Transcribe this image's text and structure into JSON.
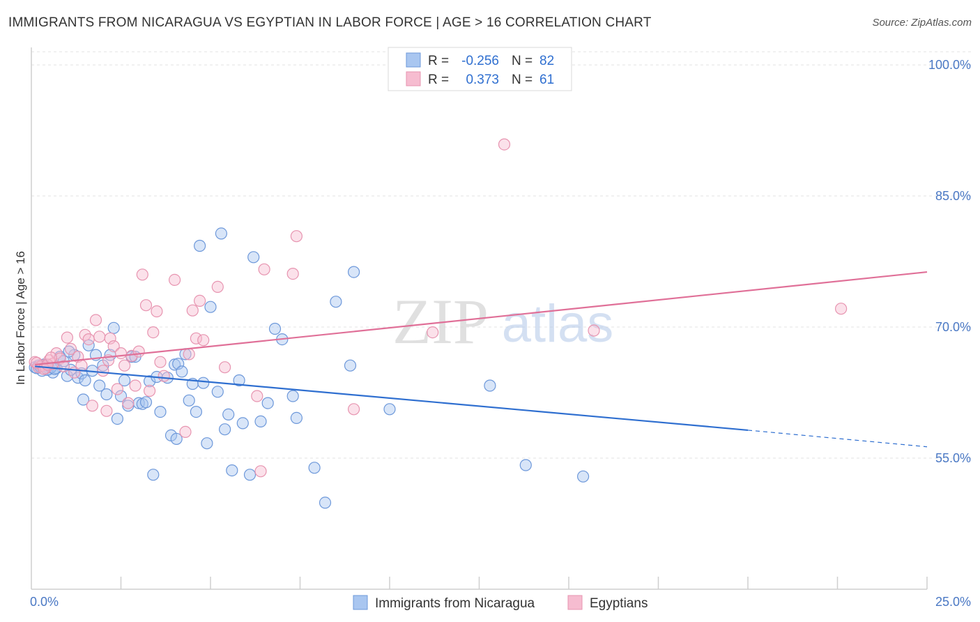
{
  "header": {
    "title": "IMMIGRANTS FROM NICARAGUA VS EGYPTIAN IN LABOR FORCE | AGE > 16 CORRELATION CHART",
    "source": "Source: ZipAtlas.com"
  },
  "watermark": {
    "zip": "ZIP",
    "atlas": "atlas"
  },
  "legend": {
    "rows": [
      {
        "r_label": "R =",
        "r_value": "-0.256",
        "n_label": "N =",
        "n_value": "82",
        "color": "#a9c6f0"
      },
      {
        "r_label": "R =",
        "r_value": "0.373",
        "n_label": "N =",
        "n_value": "61",
        "color": "#f6bcd0"
      }
    ]
  },
  "chart_data": {
    "type": "scatter",
    "title": "IMMIGRANTS FROM NICARAGUA VS EGYPTIAN IN LABOR FORCE | AGE > 16 CORRELATION CHART",
    "xlabel": "",
    "ylabel": "In Labor Force | Age > 16",
    "xlim": [
      0,
      25
    ],
    "ylim": [
      40,
      102
    ],
    "x_tick_labels": [
      "0.0%",
      "25.0%"
    ],
    "y_ticks": [
      55,
      70,
      85,
      100
    ],
    "y_tick_labels": [
      "55.0%",
      "70.0%",
      "85.0%",
      "100.0%"
    ],
    "grid": true,
    "legend_position": "top-center",
    "series": [
      {
        "name": "Immigrants from Nicaragua",
        "color": "#a9c6f0",
        "stroke": "#6d98da",
        "trend": {
          "x0": 0.1,
          "y0": 65.5,
          "x1": 20.0,
          "y1": 58.2,
          "dash_x1": 25.0,
          "dash_y1": 56.3,
          "color": "#2f6fd0"
        },
        "points": [
          [
            0.1,
            65.4
          ],
          [
            0.2,
            65.6
          ],
          [
            0.3,
            65.0
          ],
          [
            0.4,
            65.5
          ],
          [
            0.5,
            65.2
          ],
          [
            0.6,
            64.8
          ],
          [
            0.7,
            65.3
          ],
          [
            0.8,
            66.6
          ],
          [
            0.9,
            66.1
          ],
          [
            1.0,
            64.4
          ],
          [
            1.1,
            65.1
          ],
          [
            1.2,
            66.8
          ],
          [
            1.3,
            64.2
          ],
          [
            1.4,
            64.7
          ],
          [
            1.5,
            63.9
          ],
          [
            1.6,
            67.9
          ],
          [
            1.7,
            65.0
          ],
          [
            1.8,
            66.8
          ],
          [
            1.9,
            63.3
          ],
          [
            2.0,
            65.6
          ],
          [
            2.1,
            62.3
          ],
          [
            2.2,
            66.8
          ],
          [
            2.3,
            69.9
          ],
          [
            2.4,
            59.5
          ],
          [
            2.5,
            62.1
          ],
          [
            2.6,
            63.9
          ],
          [
            2.7,
            61.0
          ],
          [
            2.8,
            66.6
          ],
          [
            2.9,
            66.6
          ],
          [
            3.0,
            61.3
          ],
          [
            3.1,
            61.2
          ],
          [
            3.2,
            61.4
          ],
          [
            3.3,
            63.8
          ],
          [
            3.4,
            53.1
          ],
          [
            3.5,
            64.3
          ],
          [
            3.6,
            60.3
          ],
          [
            3.8,
            64.2
          ],
          [
            3.9,
            57.6
          ],
          [
            4.0,
            65.7
          ],
          [
            4.1,
            65.8
          ],
          [
            4.2,
            64.9
          ],
          [
            4.3,
            66.9
          ],
          [
            4.4,
            61.6
          ],
          [
            4.5,
            63.5
          ],
          [
            4.6,
            60.3
          ],
          [
            4.7,
            79.3
          ],
          [
            4.8,
            63.6
          ],
          [
            4.9,
            56.7
          ],
          [
            5.0,
            72.3
          ],
          [
            5.2,
            62.6
          ],
          [
            5.3,
            80.7
          ],
          [
            5.4,
            58.3
          ],
          [
            5.5,
            60.0
          ],
          [
            5.6,
            53.6
          ],
          [
            5.8,
            63.9
          ],
          [
            5.9,
            59.0
          ],
          [
            6.1,
            53.1
          ],
          [
            6.2,
            78.0
          ],
          [
            6.4,
            59.2
          ],
          [
            6.6,
            61.3
          ],
          [
            6.8,
            69.8
          ],
          [
            7.0,
            68.6
          ],
          [
            7.3,
            62.1
          ],
          [
            7.4,
            59.6
          ],
          [
            7.9,
            53.9
          ],
          [
            8.2,
            49.9
          ],
          [
            8.5,
            72.9
          ],
          [
            8.9,
            65.6
          ],
          [
            9.0,
            76.3
          ],
          [
            10.0,
            60.6
          ],
          [
            12.8,
            63.3
          ],
          [
            13.8,
            54.2
          ],
          [
            15.4,
            52.9
          ],
          [
            0.15,
            65.3
          ],
          [
            0.35,
            65.7
          ],
          [
            0.45,
            65.1
          ],
          [
            0.55,
            65.4
          ],
          [
            0.65,
            65.2
          ],
          [
            1.05,
            67.2
          ],
          [
            4.05,
            57.2
          ],
          [
            1.45,
            61.7
          ],
          [
            0.25,
            65.5
          ]
        ]
      },
      {
        "name": "Egyptians",
        "color": "#f6bcd0",
        "stroke": "#e794b0",
        "trend": {
          "x0": 0.1,
          "y0": 65.7,
          "x1": 25.0,
          "y1": 76.3,
          "color": "#e07098"
        },
        "points": [
          [
            0.1,
            66.0
          ],
          [
            0.2,
            65.4
          ],
          [
            0.3,
            65.6
          ],
          [
            0.4,
            65.3
          ],
          [
            0.5,
            66.2
          ],
          [
            0.6,
            65.8
          ],
          [
            0.7,
            67.0
          ],
          [
            0.8,
            66.4
          ],
          [
            0.9,
            65.5
          ],
          [
            1.0,
            68.8
          ],
          [
            1.1,
            67.5
          ],
          [
            1.2,
            64.8
          ],
          [
            1.3,
            66.6
          ],
          [
            1.4,
            65.6
          ],
          [
            1.5,
            69.1
          ],
          [
            1.6,
            68.6
          ],
          [
            1.7,
            61.0
          ],
          [
            1.8,
            70.8
          ],
          [
            1.9,
            68.9
          ],
          [
            2.0,
            65.0
          ],
          [
            2.1,
            60.4
          ],
          [
            2.2,
            68.7
          ],
          [
            2.3,
            67.8
          ],
          [
            2.4,
            62.9
          ],
          [
            2.5,
            67.0
          ],
          [
            2.6,
            65.6
          ],
          [
            2.7,
            61.3
          ],
          [
            2.8,
            66.7
          ],
          [
            2.9,
            63.3
          ],
          [
            3.0,
            67.2
          ],
          [
            3.1,
            76.0
          ],
          [
            3.2,
            72.5
          ],
          [
            3.3,
            62.7
          ],
          [
            3.4,
            69.4
          ],
          [
            3.5,
            71.8
          ],
          [
            3.6,
            66.0
          ],
          [
            3.7,
            64.4
          ],
          [
            4.0,
            75.4
          ],
          [
            4.3,
            58.0
          ],
          [
            4.4,
            66.9
          ],
          [
            4.5,
            71.9
          ],
          [
            4.6,
            68.7
          ],
          [
            4.7,
            73.0
          ],
          [
            4.8,
            68.5
          ],
          [
            5.2,
            74.6
          ],
          [
            5.4,
            65.4
          ],
          [
            6.3,
            62.1
          ],
          [
            6.4,
            53.5
          ],
          [
            6.5,
            76.6
          ],
          [
            7.3,
            76.1
          ],
          [
            7.4,
            80.4
          ],
          [
            9.0,
            60.6
          ],
          [
            11.2,
            69.4
          ],
          [
            13.2,
            90.9
          ],
          [
            15.7,
            69.6
          ],
          [
            22.6,
            72.1
          ],
          [
            0.15,
            65.9
          ],
          [
            0.35,
            65.2
          ],
          [
            0.45,
            65.7
          ],
          [
            0.55,
            66.5
          ],
          [
            2.15,
            66.2
          ]
        ]
      }
    ]
  },
  "bottom_legend": [
    {
      "label": "Immigrants from Nicaragua",
      "color": "#a9c6f0",
      "stroke": "#6d98da"
    },
    {
      "label": "Egyptians",
      "color": "#f6bcd0",
      "stroke": "#e794b0"
    }
  ]
}
